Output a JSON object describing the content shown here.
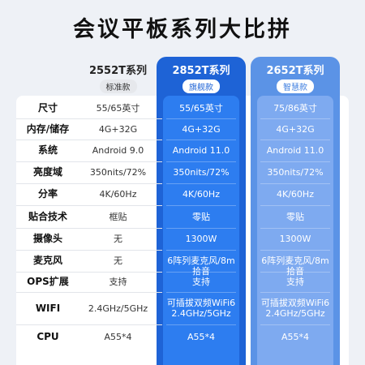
{
  "title": "会议平板系列大比拼",
  "columns": [
    {
      "name": "2552T系列",
      "badge": "标准款"
    },
    {
      "name": "2852T系列",
      "badge": "旗舰款"
    },
    {
      "name": "2652T系列",
      "badge": "智慧款"
    }
  ],
  "colors": {
    "col2_bg": "#1e63d6",
    "col2_inner": "#2d7df0",
    "col3_bg": "#5b93e6",
    "col3_inner": "#7eaaf0"
  },
  "rows": [
    {
      "label": "尺寸",
      "values": [
        "55/65英寸",
        "55/65英寸",
        "75/86英寸"
      ]
    },
    {
      "label": "内存/储存",
      "values": [
        "4G+32G",
        "4G+32G",
        "4G+32G"
      ]
    },
    {
      "label": "系统",
      "values": [
        "Android 9.0",
        "Android 11.0",
        "Android 11.0"
      ]
    },
    {
      "label": "亮度域",
      "values": [
        "350nits/72%",
        "350nits/72%",
        "350nits/72%"
      ]
    },
    {
      "label": "分率",
      "values": [
        "4K/60Hz",
        "4K/60Hz",
        "4K/60Hz"
      ]
    },
    {
      "label": "贴合技术",
      "values": [
        "框贴",
        "零贴",
        "零贴"
      ]
    },
    {
      "label": "摄像头",
      "values": [
        "无",
        "1300W",
        "1300W"
      ]
    },
    {
      "label": "麦克风",
      "values": [
        "无",
        "6阵列麦克风/8m拾音",
        "6阵列麦克风/8m拾音"
      ]
    },
    {
      "label": "OPS扩展",
      "values": [
        "支持",
        "支持",
        "支持"
      ]
    },
    {
      "label": "WIFI",
      "values": [
        "2.4GHz/5GHz",
        "可插拔双频WiFi6\n2.4GHz/5GHz",
        "可插拔双频WiFi6\n2.4GHz/5GHz"
      ]
    },
    {
      "label": "CPU",
      "values": [
        "A55*4",
        "A55*4",
        "A55*4"
      ]
    }
  ]
}
